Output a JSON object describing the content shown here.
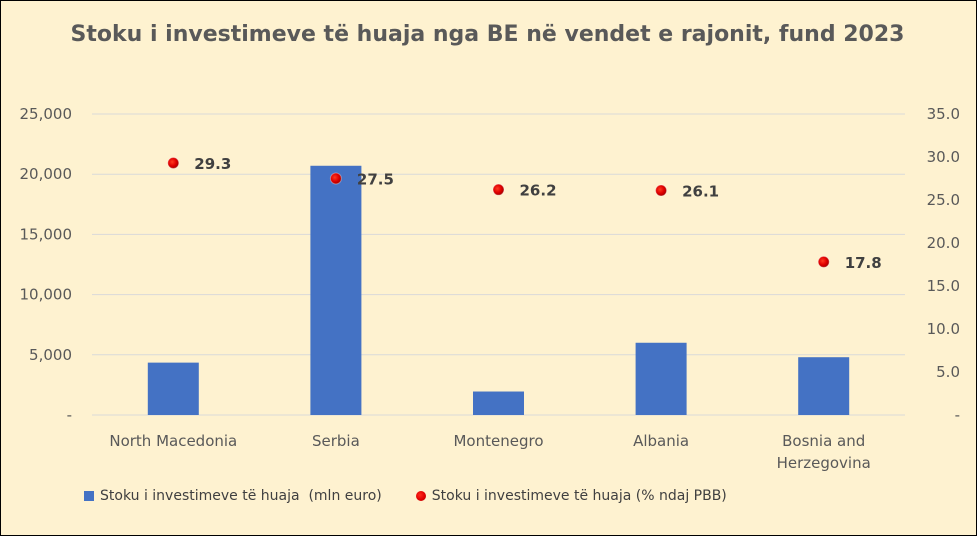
{
  "chart_data": {
    "type": "bar",
    "title": "Stoku i investimeve të huaja nga BE në vendet e rajonit, fund 2023",
    "categories": [
      "North Macedonia",
      "Serbia",
      "Montenegro",
      "Albania",
      "Bosnia and Herzegovina"
    ],
    "series": [
      {
        "name": "Stoku i investimeve të huaja  (mln euro)",
        "type": "bar",
        "axis": "left",
        "color": "#4472c4",
        "values": [
          4350,
          20700,
          1950,
          6000,
          4800
        ]
      },
      {
        "name": "Stoku i investimeve të huaja (% ndaj PBB)",
        "type": "scatter",
        "axis": "right",
        "color": "#e00000",
        "values": [
          29.3,
          27.5,
          26.2,
          26.1,
          17.8
        ],
        "labels": [
          "29.3",
          "27.5",
          "26.2",
          "26.1",
          "17.8"
        ]
      }
    ],
    "y_left": {
      "range": [
        0,
        25000
      ],
      "ticks": [
        0,
        5000,
        10000,
        15000,
        20000,
        25000
      ],
      "tick_labels": [
        "-",
        "5,000",
        "10,000",
        "15,000",
        "20,000",
        "25,000"
      ]
    },
    "y_right": {
      "range": [
        0,
        35
      ],
      "ticks": [
        0,
        5,
        10,
        15,
        20,
        25,
        30,
        35
      ],
      "tick_labels": [
        "-",
        "5.0",
        "10.0",
        "15.0",
        "20.0",
        "25.0",
        "30.0",
        "35.0"
      ]
    },
    "grid": true,
    "legend_position": "bottom-left",
    "colors": {
      "background": "#fef2d0",
      "grid": "#d9d9d9",
      "text": "#595959"
    }
  }
}
